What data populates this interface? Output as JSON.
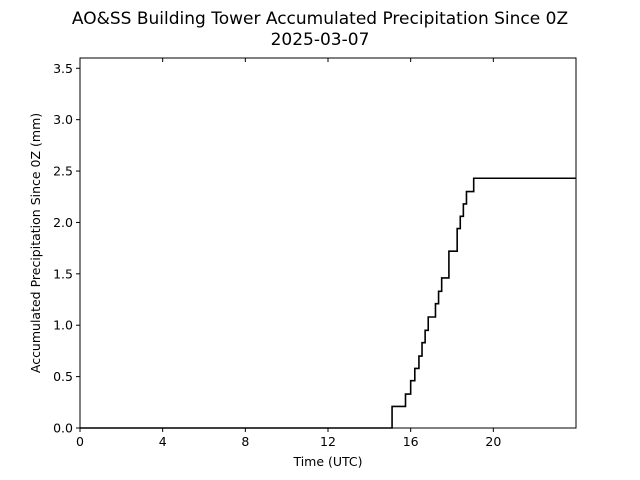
{
  "chart_data": {
    "type": "line",
    "title": "AO&SS Building Tower Accumulated Precipitation Since 0Z",
    "subtitle": "2025-03-07",
    "xlabel": "Time (UTC)",
    "ylabel": "Accumulated Precipitation Since 0Z (mm)",
    "xlim": [
      0,
      24
    ],
    "ylim": [
      0,
      3.6
    ],
    "x_ticks": [
      0,
      4,
      8,
      12,
      16,
      20
    ],
    "x_tick_labels": [
      "0",
      "4",
      "8",
      "12",
      "16",
      "20"
    ],
    "y_ticks": [
      0.0,
      0.5,
      1.0,
      1.5,
      2.0,
      2.5,
      3.0,
      3.5
    ],
    "y_tick_labels": [
      "0.0",
      "0.5",
      "1.0",
      "1.5",
      "2.0",
      "2.5",
      "3.0",
      "3.5"
    ],
    "grid": false,
    "line_color": "#000000",
    "series": [
      {
        "x": [
          0,
          15.1,
          15.1,
          15.75,
          15.75,
          16.0,
          16.0,
          16.2,
          16.2,
          16.4,
          16.4,
          16.55,
          16.55,
          16.7,
          16.7,
          16.85,
          16.85,
          17.2,
          17.2,
          17.35,
          17.35,
          17.5,
          17.5,
          17.85,
          17.85,
          18.25,
          18.25,
          18.4,
          18.4,
          18.55,
          18.55,
          18.7,
          18.7,
          19.05,
          19.05,
          24
        ],
        "y": [
          0,
          0,
          0.21,
          0.21,
          0.33,
          0.33,
          0.46,
          0.46,
          0.58,
          0.58,
          0.7,
          0.7,
          0.83,
          0.83,
          0.95,
          0.95,
          1.08,
          1.08,
          1.21,
          1.21,
          1.33,
          1.33,
          1.46,
          1.46,
          1.72,
          1.72,
          1.94,
          1.94,
          2.06,
          2.06,
          2.18,
          2.18,
          2.3,
          2.3,
          2.43,
          2.43
        ]
      }
    ]
  }
}
